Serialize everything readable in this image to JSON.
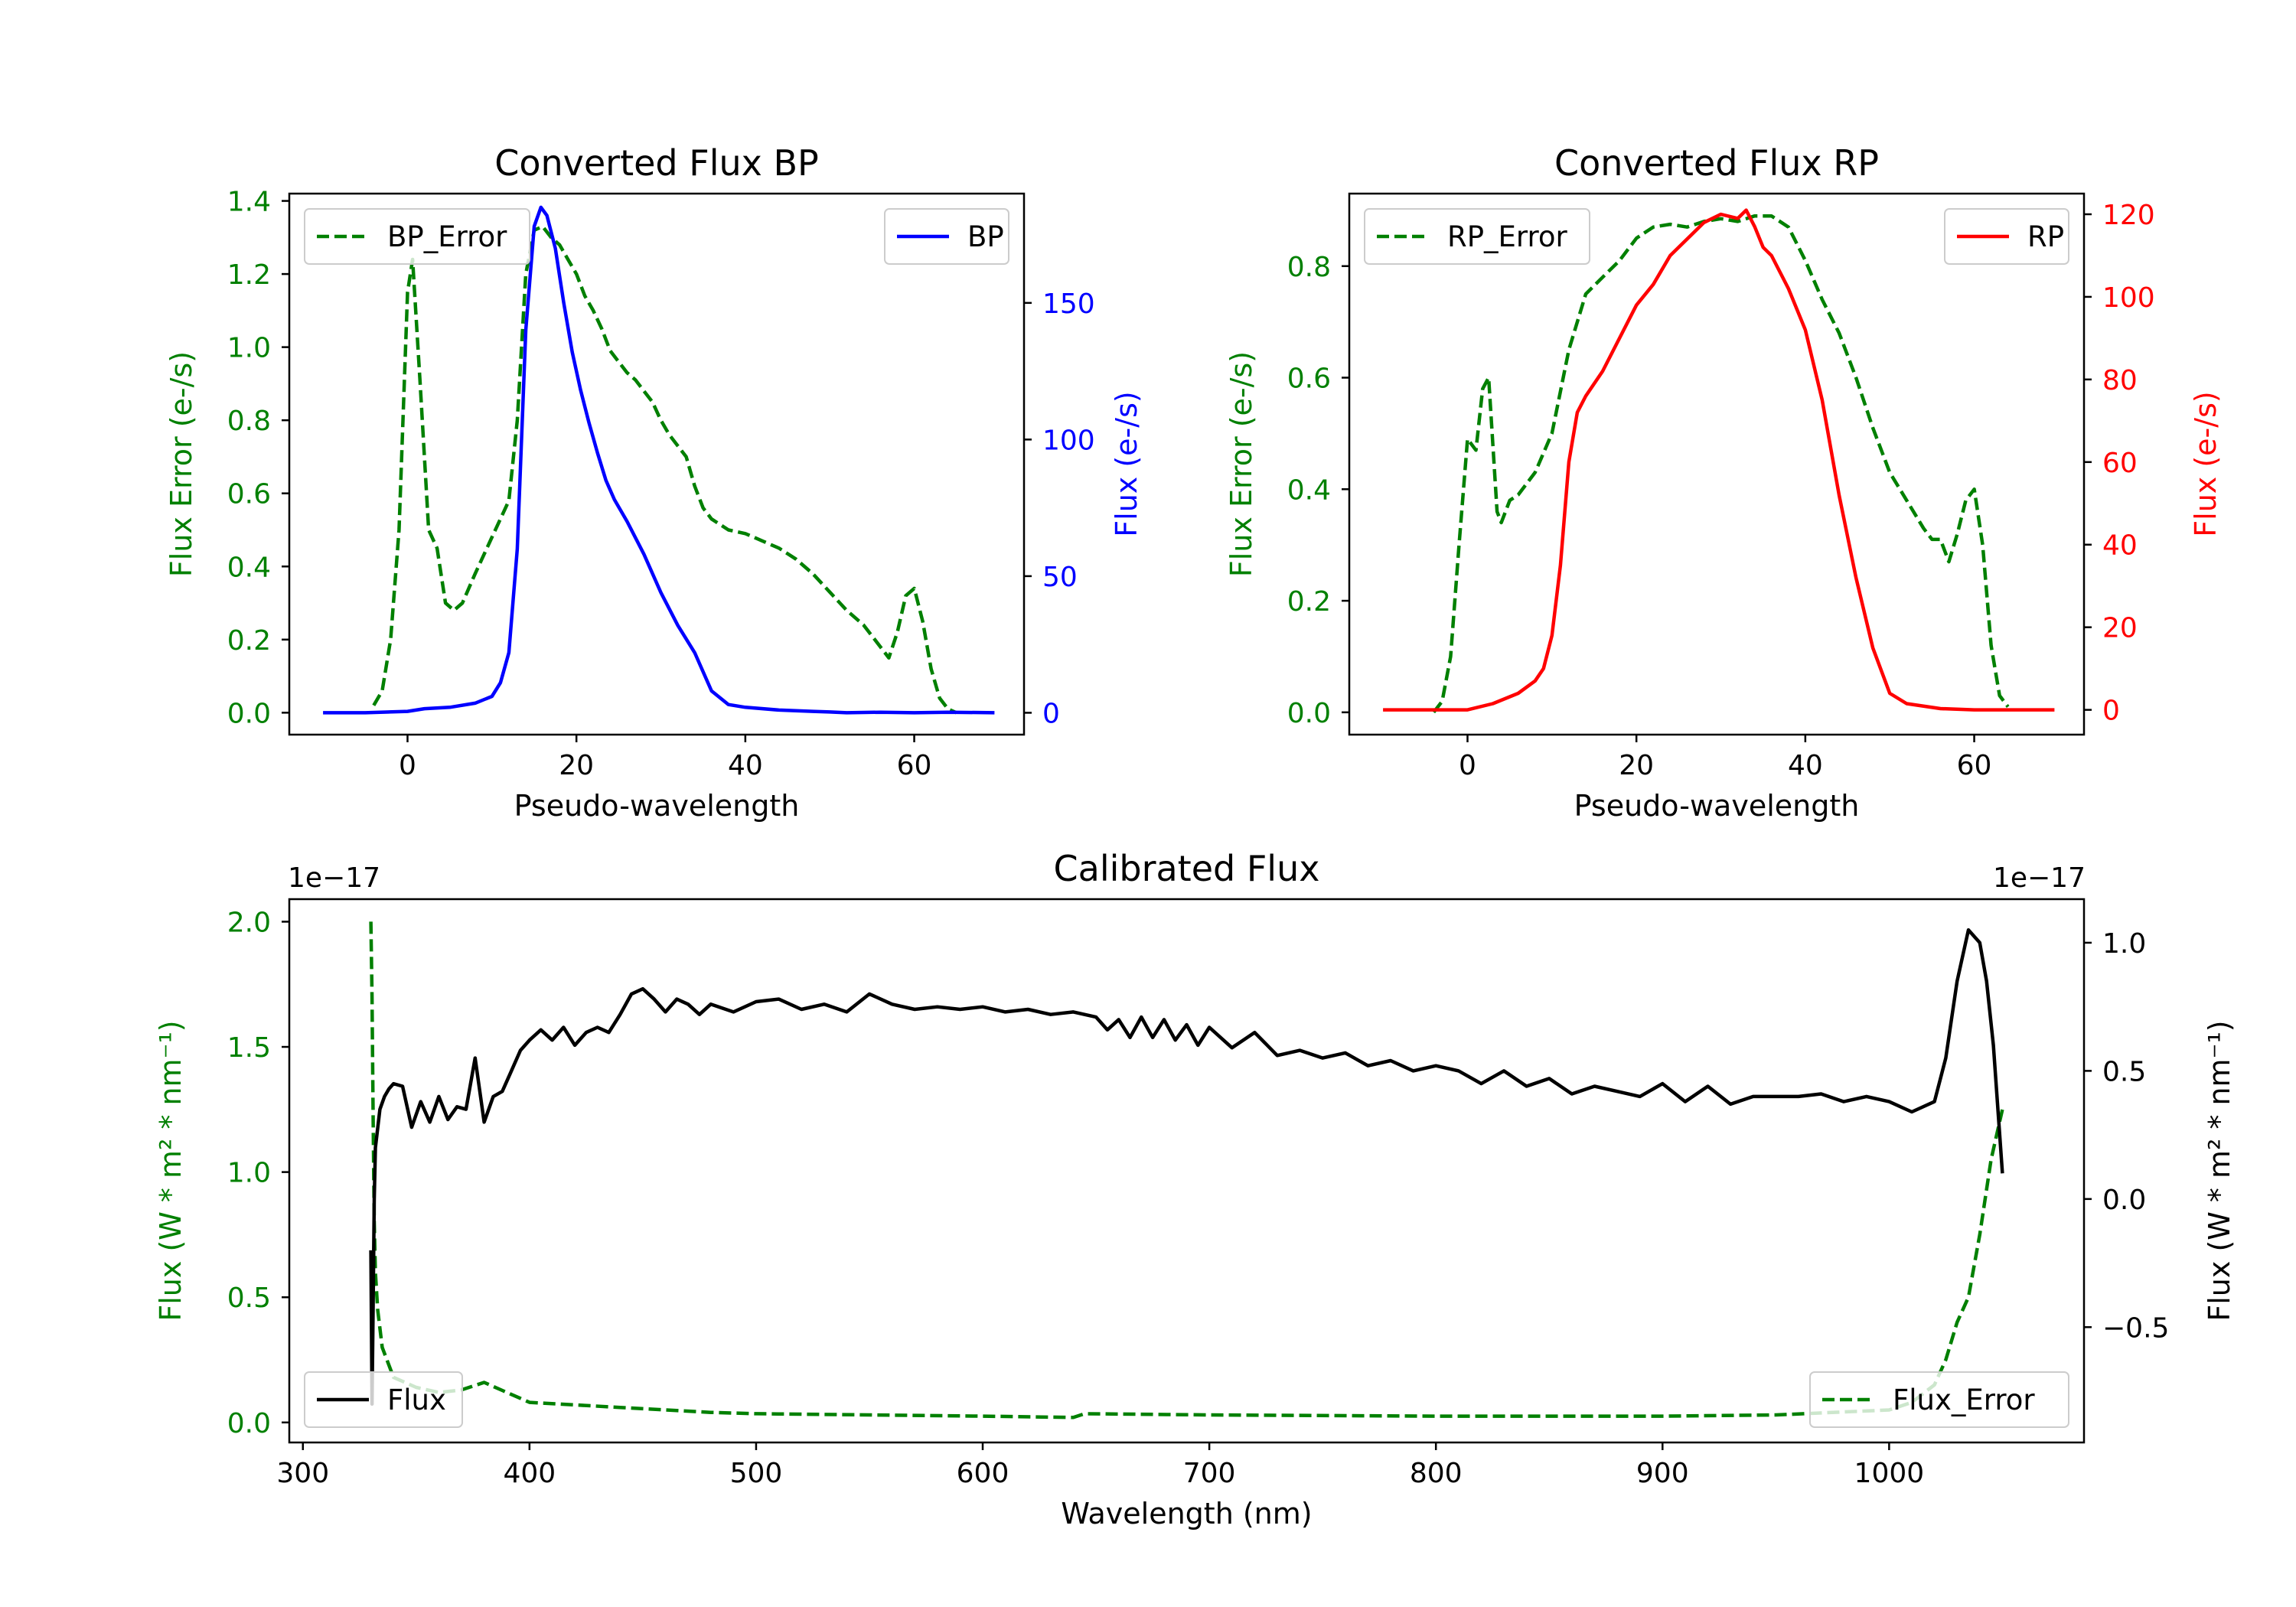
{
  "chart_data": [
    {
      "id": "bp",
      "type": "line",
      "title": "Converted Flux BP",
      "xlabel": "Pseudo-wavelength",
      "xlim": [
        -14,
        73
      ],
      "xticks": [
        0,
        20,
        40,
        60
      ],
      "left_axis": {
        "label": "Flux Error (e-/s)",
        "color": "#008000",
        "ylim": [
          -0.06,
          1.42
        ],
        "ticks": [
          0.0,
          0.2,
          0.4,
          0.6,
          0.8,
          1.0,
          1.2,
          1.4
        ],
        "tick_labels": [
          "0.0",
          "0.2",
          "0.4",
          "0.6",
          "0.8",
          "1.0",
          "1.2",
          "1.4"
        ]
      },
      "right_axis": {
        "label": "Flux (e-/s)",
        "color": "#0000ff",
        "ylim": [
          -8,
          190
        ],
        "ticks": [
          0,
          50,
          100,
          150
        ],
        "tick_labels": [
          "0",
          "50",
          "100",
          "150"
        ]
      },
      "series": [
        {
          "name": "BP_Error",
          "axis": "left",
          "style": "dashed",
          "color": "#008000",
          "x": [
            -4,
            -3,
            -2,
            -1,
            0,
            0.6,
            1.5,
            2.5,
            3.5,
            4.5,
            5.5,
            6.5,
            8,
            10,
            12,
            13,
            14,
            15,
            16,
            17,
            18,
            19,
            20,
            21,
            22,
            23,
            24,
            25,
            26,
            27,
            28,
            29,
            30,
            31,
            32,
            33,
            34,
            35,
            36,
            38,
            40,
            42,
            44,
            46,
            48,
            50,
            52,
            54,
            56,
            57,
            58,
            59,
            60,
            61,
            62,
            63,
            64,
            65
          ],
          "y": [
            0.02,
            0.06,
            0.2,
            0.5,
            1.15,
            1.24,
            0.9,
            0.5,
            0.45,
            0.3,
            0.28,
            0.3,
            0.38,
            0.48,
            0.58,
            0.8,
            1.2,
            1.32,
            1.33,
            1.3,
            1.28,
            1.24,
            1.2,
            1.14,
            1.1,
            1.05,
            0.99,
            0.96,
            0.93,
            0.91,
            0.88,
            0.85,
            0.8,
            0.76,
            0.73,
            0.7,
            0.62,
            0.56,
            0.53,
            0.5,
            0.49,
            0.47,
            0.45,
            0.42,
            0.38,
            0.33,
            0.28,
            0.24,
            0.18,
            0.15,
            0.22,
            0.32,
            0.34,
            0.25,
            0.12,
            0.04,
            0.01,
            0.0
          ]
        },
        {
          "name": "BP",
          "axis": "right",
          "style": "solid",
          "color": "#0000ff",
          "x": [
            -10,
            -5,
            0,
            2,
            5,
            8,
            10,
            11,
            12,
            13,
            14,
            15,
            15.8,
            16.5,
            17.5,
            18.5,
            19.5,
            20.5,
            21.5,
            22.5,
            23.5,
            24.5,
            26,
            28,
            30,
            32,
            34,
            36,
            38,
            40,
            44,
            48,
            50,
            52,
            56,
            60,
            64,
            69.5
          ],
          "y": [
            0,
            0,
            0.5,
            1.5,
            2,
            3.5,
            6,
            11,
            22,
            60,
            140,
            178,
            185,
            182,
            170,
            150,
            132,
            118,
            106,
            95,
            85,
            78,
            70,
            58,
            44,
            32,
            22,
            8,
            3,
            2,
            1,
            0.5,
            0.3,
            0,
            0.2,
            0,
            0.2,
            0
          ]
        }
      ],
      "legends": [
        {
          "entries": [
            "BP_Error"
          ],
          "placement": "upper left"
        },
        {
          "entries": [
            "BP"
          ],
          "placement": "upper right"
        }
      ]
    },
    {
      "id": "rp",
      "type": "line",
      "title": "Converted Flux RP",
      "xlabel": "Pseudo-wavelength",
      "xlim": [
        -14,
        73
      ],
      "xticks": [
        0,
        20,
        40,
        60
      ],
      "left_axis": {
        "label": "Flux Error (e-/s)",
        "color": "#008000",
        "ylim": [
          -0.04,
          0.93
        ],
        "ticks": [
          0.0,
          0.2,
          0.4,
          0.6,
          0.8
        ],
        "tick_labels": [
          "0.0",
          "0.2",
          "0.4",
          "0.6",
          "0.8"
        ]
      },
      "right_axis": {
        "label": "Flux (e-/s)",
        "color": "#ff0000",
        "ylim": [
          -6,
          125
        ],
        "ticks": [
          0,
          20,
          40,
          60,
          80,
          100,
          120
        ],
        "tick_labels": [
          "0",
          "20",
          "40",
          "60",
          "80",
          "100",
          "120"
        ]
      },
      "series": [
        {
          "name": "RP_Error",
          "axis": "left",
          "style": "dashed",
          "color": "#008000",
          "x": [
            -4,
            -3,
            -2,
            -1,
            0,
            1,
            1.8,
            2.5,
            3,
            3.5,
            4,
            5,
            6,
            8,
            10,
            12,
            14,
            16,
            18,
            20,
            22,
            24,
            26,
            28,
            30,
            32,
            34,
            36,
            38,
            40,
            42,
            44,
            46,
            48,
            50,
            52,
            54,
            55,
            56,
            57,
            58,
            59,
            60,
            61,
            62,
            63,
            64
          ],
          "y": [
            0.0,
            0.02,
            0.1,
            0.3,
            0.49,
            0.47,
            0.58,
            0.6,
            0.48,
            0.36,
            0.34,
            0.38,
            0.39,
            0.43,
            0.5,
            0.65,
            0.75,
            0.78,
            0.81,
            0.85,
            0.87,
            0.875,
            0.87,
            0.88,
            0.885,
            0.88,
            0.89,
            0.89,
            0.87,
            0.81,
            0.74,
            0.68,
            0.6,
            0.51,
            0.43,
            0.38,
            0.33,
            0.31,
            0.31,
            0.27,
            0.32,
            0.38,
            0.4,
            0.3,
            0.12,
            0.03,
            0.01
          ]
        },
        {
          "name": "RP",
          "axis": "right",
          "style": "solid",
          "color": "#ff0000",
          "x": [
            -10,
            -5,
            0,
            3,
            6,
            8,
            9,
            10,
            11,
            12,
            13,
            14,
            16,
            18,
            20,
            22,
            24,
            26,
            28,
            30,
            32,
            33,
            34,
            35,
            36,
            38,
            40,
            42,
            44,
            46,
            48,
            50,
            52,
            56,
            60,
            64,
            69.5
          ],
          "y": [
            0,
            0,
            0,
            1.5,
            4,
            7,
            10,
            18,
            35,
            60,
            72,
            76,
            82,
            90,
            98,
            103,
            110,
            114,
            118,
            120,
            119,
            121,
            117,
            112,
            110,
            102,
            92,
            75,
            52,
            32,
            15,
            4,
            1.5,
            0.3,
            0,
            0,
            0
          ]
        }
      ],
      "legends": [
        {
          "entries": [
            "RP_Error"
          ],
          "placement": "upper left"
        },
        {
          "entries": [
            "RP"
          ],
          "placement": "upper right"
        }
      ]
    },
    {
      "id": "cal",
      "type": "line",
      "title": "Calibrated Flux",
      "xlabel": "Wavelength (nm)",
      "xlim": [
        294,
        1086
      ],
      "xticks": [
        300,
        400,
        500,
        600,
        700,
        800,
        900,
        1000
      ],
      "left_axis": {
        "label": "Flux (W * m² * nm⁻¹)",
        "color": "#008000",
        "offset_text": "1e−17",
        "ylim": [
          -0.08,
          2.09
        ],
        "ticks": [
          0.0,
          0.5,
          1.0,
          1.5,
          2.0
        ],
        "tick_labels": [
          "0.0",
          "0.5",
          "1.0",
          "1.5",
          "2.0"
        ]
      },
      "right_axis": {
        "label": "Flux (W * m² * nm⁻¹)",
        "color": "#000000",
        "offset_text": "1e−17",
        "ylim": [
          -0.95,
          1.17
        ],
        "ticks": [
          -0.5,
          0.0,
          0.5,
          1.0
        ],
        "tick_labels": [
          "−0.5",
          "0.0",
          "0.5",
          "1.0"
        ]
      },
      "series": [
        {
          "name": "Flux_Error",
          "axis": "left",
          "style": "dashed",
          "color": "#008000",
          "x": [
            330,
            330.5,
            331,
            331.5,
            332,
            333,
            335,
            340,
            350,
            360,
            370,
            380,
            390,
            400,
            420,
            440,
            460,
            480,
            500,
            550,
            600,
            640,
            645,
            700,
            800,
            900,
            950,
            1000,
            1010,
            1020,
            1025,
            1030,
            1035,
            1040,
            1045,
            1050
          ],
          "y": [
            2.0,
            1.7,
            1.2,
            0.8,
            0.6,
            0.45,
            0.3,
            0.18,
            0.14,
            0.12,
            0.13,
            0.16,
            0.12,
            0.08,
            0.07,
            0.06,
            0.05,
            0.04,
            0.035,
            0.03,
            0.025,
            0.02,
            0.035,
            0.03,
            0.025,
            0.025,
            0.03,
            0.05,
            0.08,
            0.15,
            0.25,
            0.4,
            0.5,
            0.75,
            1.05,
            1.25
          ]
        },
        {
          "name": "Flux",
          "axis": "right",
          "style": "solid",
          "color": "#000000",
          "x": [
            330,
            330.5,
            331,
            331.5,
            332,
            334,
            336,
            338,
            340,
            344,
            348,
            352,
            356,
            360,
            364,
            368,
            372,
            376,
            380,
            384,
            388,
            392,
            396,
            400,
            405,
            410,
            415,
            420,
            425,
            430,
            435,
            440,
            445,
            450,
            455,
            460,
            465,
            470,
            475,
            480,
            490,
            500,
            510,
            520,
            530,
            540,
            550,
            560,
            570,
            580,
            590,
            600,
            610,
            620,
            630,
            640,
            650,
            655,
            660,
            665,
            670,
            675,
            680,
            685,
            690,
            695,
            700,
            710,
            720,
            730,
            740,
            750,
            760,
            770,
            780,
            790,
            800,
            810,
            820,
            830,
            840,
            850,
            860,
            870,
            880,
            890,
            900,
            910,
            920,
            930,
            940,
            950,
            960,
            970,
            980,
            990,
            1000,
            1010,
            1020,
            1025,
            1030,
            1035,
            1040,
            1043,
            1046,
            1048,
            1050
          ],
          "y": [
            -0.2,
            -0.8,
            -0.4,
            0.0,
            0.2,
            0.35,
            0.4,
            0.43,
            0.45,
            0.44,
            0.28,
            0.38,
            0.3,
            0.4,
            0.31,
            0.36,
            0.35,
            0.55,
            0.3,
            0.4,
            0.42,
            0.5,
            0.58,
            0.62,
            0.66,
            0.62,
            0.67,
            0.6,
            0.65,
            0.67,
            0.65,
            0.72,
            0.8,
            0.82,
            0.78,
            0.73,
            0.78,
            0.76,
            0.72,
            0.76,
            0.73,
            0.77,
            0.78,
            0.74,
            0.76,
            0.73,
            0.8,
            0.76,
            0.74,
            0.75,
            0.74,
            0.75,
            0.73,
            0.74,
            0.72,
            0.73,
            0.71,
            0.66,
            0.7,
            0.63,
            0.71,
            0.63,
            0.7,
            0.62,
            0.68,
            0.6,
            0.67,
            0.59,
            0.65,
            0.56,
            0.58,
            0.55,
            0.57,
            0.52,
            0.54,
            0.5,
            0.52,
            0.5,
            0.45,
            0.5,
            0.44,
            0.47,
            0.41,
            0.44,
            0.42,
            0.4,
            0.45,
            0.38,
            0.44,
            0.37,
            0.4,
            0.4,
            0.4,
            0.41,
            0.38,
            0.4,
            0.38,
            0.34,
            0.38,
            0.55,
            0.85,
            1.05,
            1.0,
            0.85,
            0.6,
            0.35,
            0.1
          ]
        }
      ],
      "legends": [
        {
          "entries": [
            "Flux"
          ],
          "placement": "lower left"
        },
        {
          "entries": [
            "Flux_Error"
          ],
          "placement": "lower right"
        }
      ]
    }
  ]
}
